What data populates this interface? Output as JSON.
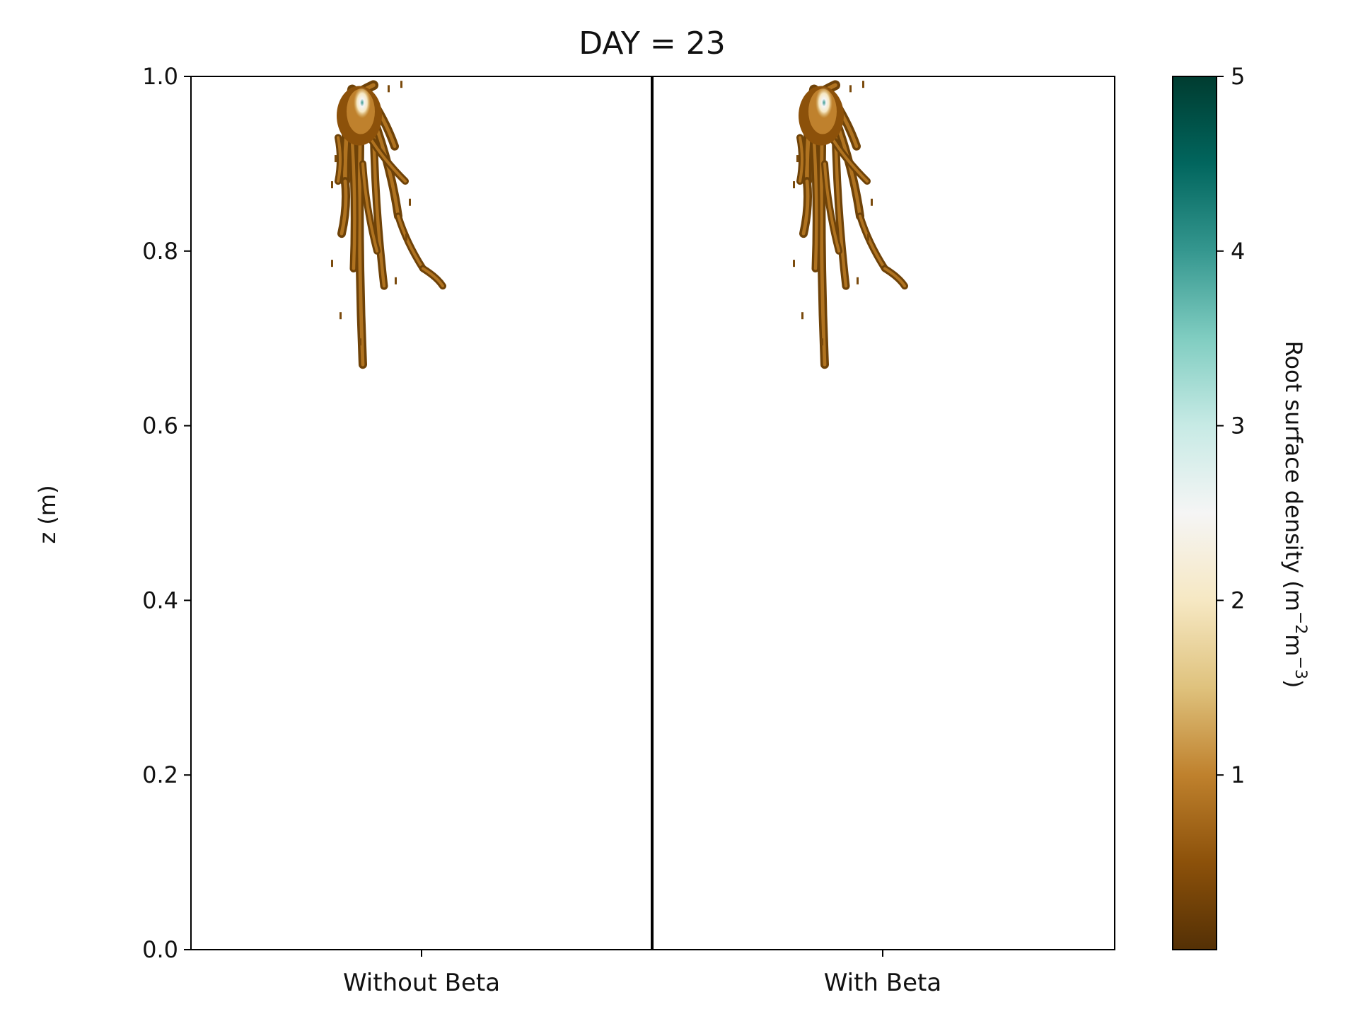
{
  "chart_data": {
    "type": "heatmap",
    "title": "DAY = 23",
    "ylabel": "z (m)",
    "ylim": [
      0.0,
      1.0
    ],
    "yticks": [
      "0.0",
      "0.2",
      "0.4",
      "0.6",
      "0.8",
      "1.0"
    ],
    "categories": [
      "Without Beta",
      "With Beta"
    ],
    "colorbar": {
      "label_base": "Root surface density (m",
      "label_sup1": "−2",
      "label_mid": "m",
      "label_sup2": "−3",
      "label_end": ")",
      "range": [
        0,
        5
      ],
      "ticks": [
        "1",
        "2",
        "3",
        "4",
        "5"
      ],
      "colormap": [
        "#543005",
        "#8c510a",
        "#bf812d",
        "#dfc27d",
        "#f6e8c3",
        "#f5f5f5",
        "#c7eae5",
        "#80cdc1",
        "#35978f",
        "#01665e",
        "#003c30"
      ]
    },
    "panels": [
      {
        "name": "Without Beta",
        "center_x": 0.5,
        "depth_min_z": 0.67,
        "peak_density": 4.2,
        "peak_z": 0.97
      },
      {
        "name": "With Beta",
        "center_x": 0.5,
        "depth_min_z": 0.67,
        "peak_density": 4.0,
        "peak_z": 0.97
      }
    ]
  }
}
